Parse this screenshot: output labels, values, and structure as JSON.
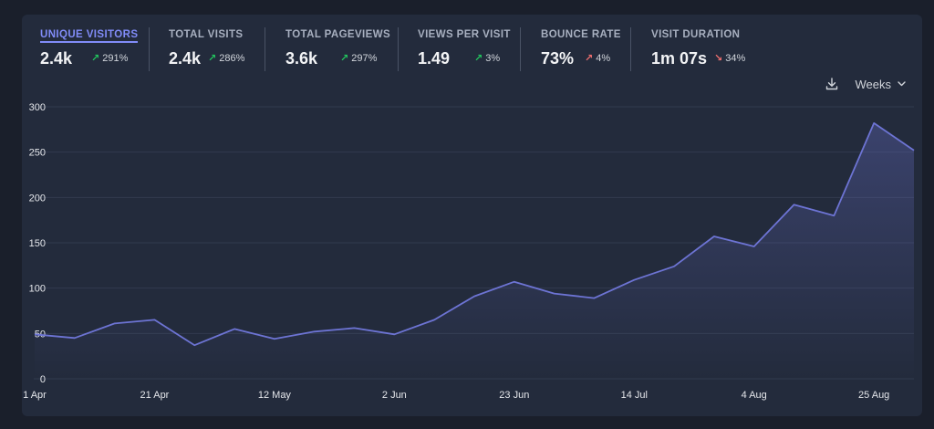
{
  "stats": [
    {
      "label": "Unique visitors",
      "value": "2.4k",
      "change": "291%",
      "direction": "up"
    },
    {
      "label": "Total visits",
      "value": "2.4k",
      "change": "286%",
      "direction": "up"
    },
    {
      "label": "Total pageviews",
      "value": "3.6k",
      "change": "297%",
      "direction": "up"
    },
    {
      "label": "Views per visit",
      "value": "1.49",
      "change": "3%",
      "direction": "up"
    },
    {
      "label": "Bounce rate",
      "value": "73%",
      "change": "4%",
      "direction": "up-bad"
    },
    {
      "label": "Visit duration",
      "value": "1m 07s",
      "change": "34%",
      "direction": "down-bad"
    }
  ],
  "toolbar": {
    "period": "Weeks",
    "download_icon": "download-icon",
    "chevron_icon": "chevron-down-icon"
  },
  "colors": {
    "line": "#6d74d4",
    "grid": "#323b4e",
    "good": "#22c55e",
    "bad": "#ef6f6f",
    "accent": "#818cf8"
  },
  "chart_data": {
    "type": "area",
    "title": "",
    "xlabel": "",
    "ylabel": "",
    "series": [
      {
        "name": "Unique visitors",
        "values": [
          49,
          45,
          61,
          65,
          37,
          55,
          44,
          52,
          56,
          49,
          65,
          91,
          107,
          94,
          89,
          109,
          124,
          157,
          146,
          192,
          180,
          282,
          252
        ]
      }
    ],
    "x_tick_labels": [
      "1 Apr",
      "21 Apr",
      "12 May",
      "2 Jun",
      "23 Jun",
      "14 Jul",
      "4 Aug",
      "25 Aug"
    ],
    "x_tick_indices": [
      0,
      3,
      6,
      9,
      12,
      15,
      18,
      21
    ],
    "yticks": [
      0,
      50,
      100,
      150,
      200,
      250,
      300
    ],
    "ylim": [
      0,
      300
    ],
    "grid": true
  }
}
